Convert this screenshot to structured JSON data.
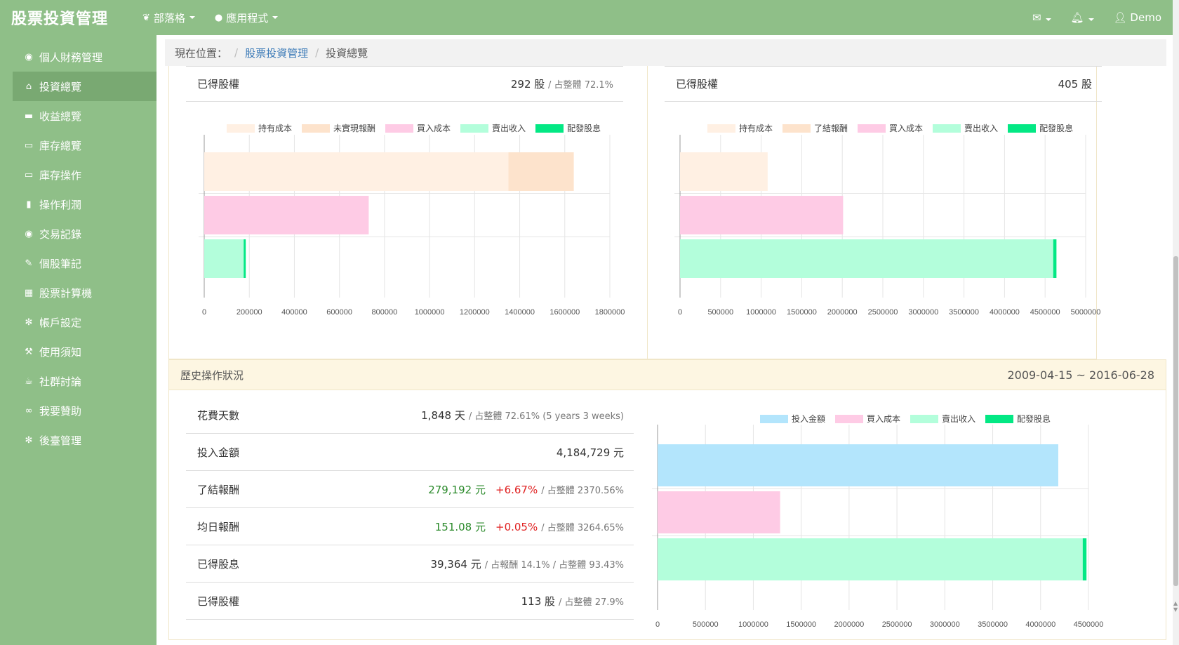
{
  "navbar": {
    "brand": "股票投資管理",
    "items": [
      {
        "label": "部落格",
        "icon": "leaf-icon"
      },
      {
        "label": "應用程式",
        "icon": "globe-icon"
      }
    ],
    "right": {
      "user": "Demo"
    }
  },
  "sidebar": {
    "items": [
      {
        "label": "個人財務管理",
        "icon": "eye-icon"
      },
      {
        "label": "投資總覽",
        "icon": "bank-icon",
        "active": true
      },
      {
        "label": "收益總覽",
        "icon": "briefcase-icon"
      },
      {
        "label": "庫存總覽",
        "icon": "inbox-icon"
      },
      {
        "label": "庫存操作",
        "icon": "inbox-icon"
      },
      {
        "label": "操作利潤",
        "icon": "bookmark-icon"
      },
      {
        "label": "交易記錄",
        "icon": "eye-icon"
      },
      {
        "label": "個股筆記",
        "icon": "edit-icon"
      },
      {
        "label": "股票計算機",
        "icon": "calculator-icon"
      },
      {
        "label": "帳戶設定",
        "icon": "gear-icon"
      },
      {
        "label": "使用須知",
        "icon": "gavel-icon"
      },
      {
        "label": "社群討論",
        "icon": "coffee-icon"
      },
      {
        "label": "我要贊助",
        "icon": "handshake-icon"
      },
      {
        "label": "後臺管理",
        "icon": "gear-icon"
      }
    ]
  },
  "breadcrumb": {
    "prefix": "現在位置：",
    "sep": "/",
    "link": "股票投資管理",
    "current": "投資總覽"
  },
  "left_panel": {
    "row": {
      "label": "已得股權",
      "value": "292 股",
      "note": "/ 占整體 72.1%"
    }
  },
  "right_panel": {
    "row": {
      "label": "已得股權",
      "value": "405 股"
    }
  },
  "history": {
    "title": "歷史操作狀況",
    "range": "2009-04-15 ~ 2016-06-28",
    "rows": [
      {
        "label": "花費天數",
        "value": "1,848 天",
        "note": "/ 占整體 72.61% (5 years 3 weeks)"
      },
      {
        "label": "投入金額",
        "value": "4,184,729 元"
      },
      {
        "label": "了結報酬",
        "value": "279,192 元",
        "pct": "+6.67%",
        "note": "/ 占整體 2370.56%"
      },
      {
        "label": "均日報酬",
        "value": "151.08 元",
        "pct": "+0.05%",
        "note": "/ 占整體 3264.65%"
      },
      {
        "label": "已得股息",
        "value": "39,364 元",
        "note": "/ 占報酬 14.1% / 占整體 93.43%"
      },
      {
        "label": "已得股權",
        "value": "113 股",
        "note": "/ 占整體 27.9%"
      }
    ]
  },
  "colors": {
    "hold_cost": "#fff0e3",
    "unrealized": "#fde3cc",
    "realized": "#fde3cc",
    "buy_cost": "#fecbe5",
    "sell_income": "#b3fedb",
    "dividend": "#03e884",
    "invest": "#b3e5fc"
  },
  "chart_data": [
    {
      "type": "bar",
      "orientation": "horizontal",
      "stacked": true,
      "legend": [
        "持有成本",
        "未實現報酬",
        "買入成本",
        "賣出收入",
        "配發股息"
      ],
      "xlim": [
        0,
        1800000
      ],
      "xticks": [
        "0",
        "200000",
        "400000",
        "600000",
        "800000",
        "1000000",
        "1200000",
        "1400000",
        "1600000",
        "1800000"
      ],
      "bars": [
        {
          "segments": [
            {
              "series": "持有成本",
              "value": 1350000
            },
            {
              "series": "未實現報酬",
              "value": 290000
            }
          ]
        },
        {
          "segments": [
            {
              "series": "買入成本",
              "value": 730000
            }
          ]
        },
        {
          "segments": [
            {
              "series": "賣出收入",
              "value": 175000
            },
            {
              "series": "配發股息",
              "value": 5000
            }
          ]
        }
      ]
    },
    {
      "type": "bar",
      "orientation": "horizontal",
      "stacked": true,
      "legend": [
        "持有成本",
        "了結報酬",
        "買入成本",
        "賣出收入",
        "配發股息"
      ],
      "xlim": [
        0,
        5000000
      ],
      "xticks": [
        "0",
        "500000",
        "1000000",
        "1500000",
        "2000000",
        "2500000",
        "3000000",
        "3500000",
        "4000000",
        "4500000",
        "5000000"
      ],
      "bars": [
        {
          "segments": [
            {
              "series": "持有成本",
              "value": 1080000
            }
          ]
        },
        {
          "segments": [
            {
              "series": "買入成本",
              "value": 2010000
            }
          ]
        },
        {
          "segments": [
            {
              "series": "賣出收入",
              "value": 4600000
            },
            {
              "series": "配發股息",
              "value": 40000
            }
          ]
        }
      ]
    },
    {
      "type": "bar",
      "orientation": "horizontal",
      "stacked": true,
      "legend": [
        "投入金額",
        "買入成本",
        "賣出收入",
        "配發股息"
      ],
      "xlim": [
        0,
        4500000
      ],
      "xticks": [
        "0",
        "500000",
        "1000000",
        "1500000",
        "2000000",
        "2500000",
        "3000000",
        "3500000",
        "4000000",
        "4500000"
      ],
      "bars": [
        {
          "segments": [
            {
              "series": "投入金額",
              "value": 4184729
            }
          ]
        },
        {
          "segments": [
            {
              "series": "買入成本",
              "value": 1280000
            }
          ]
        },
        {
          "segments": [
            {
              "series": "賣出收入",
              "value": 4440000
            },
            {
              "series": "配發股息",
              "value": 39364
            }
          ]
        }
      ]
    }
  ]
}
